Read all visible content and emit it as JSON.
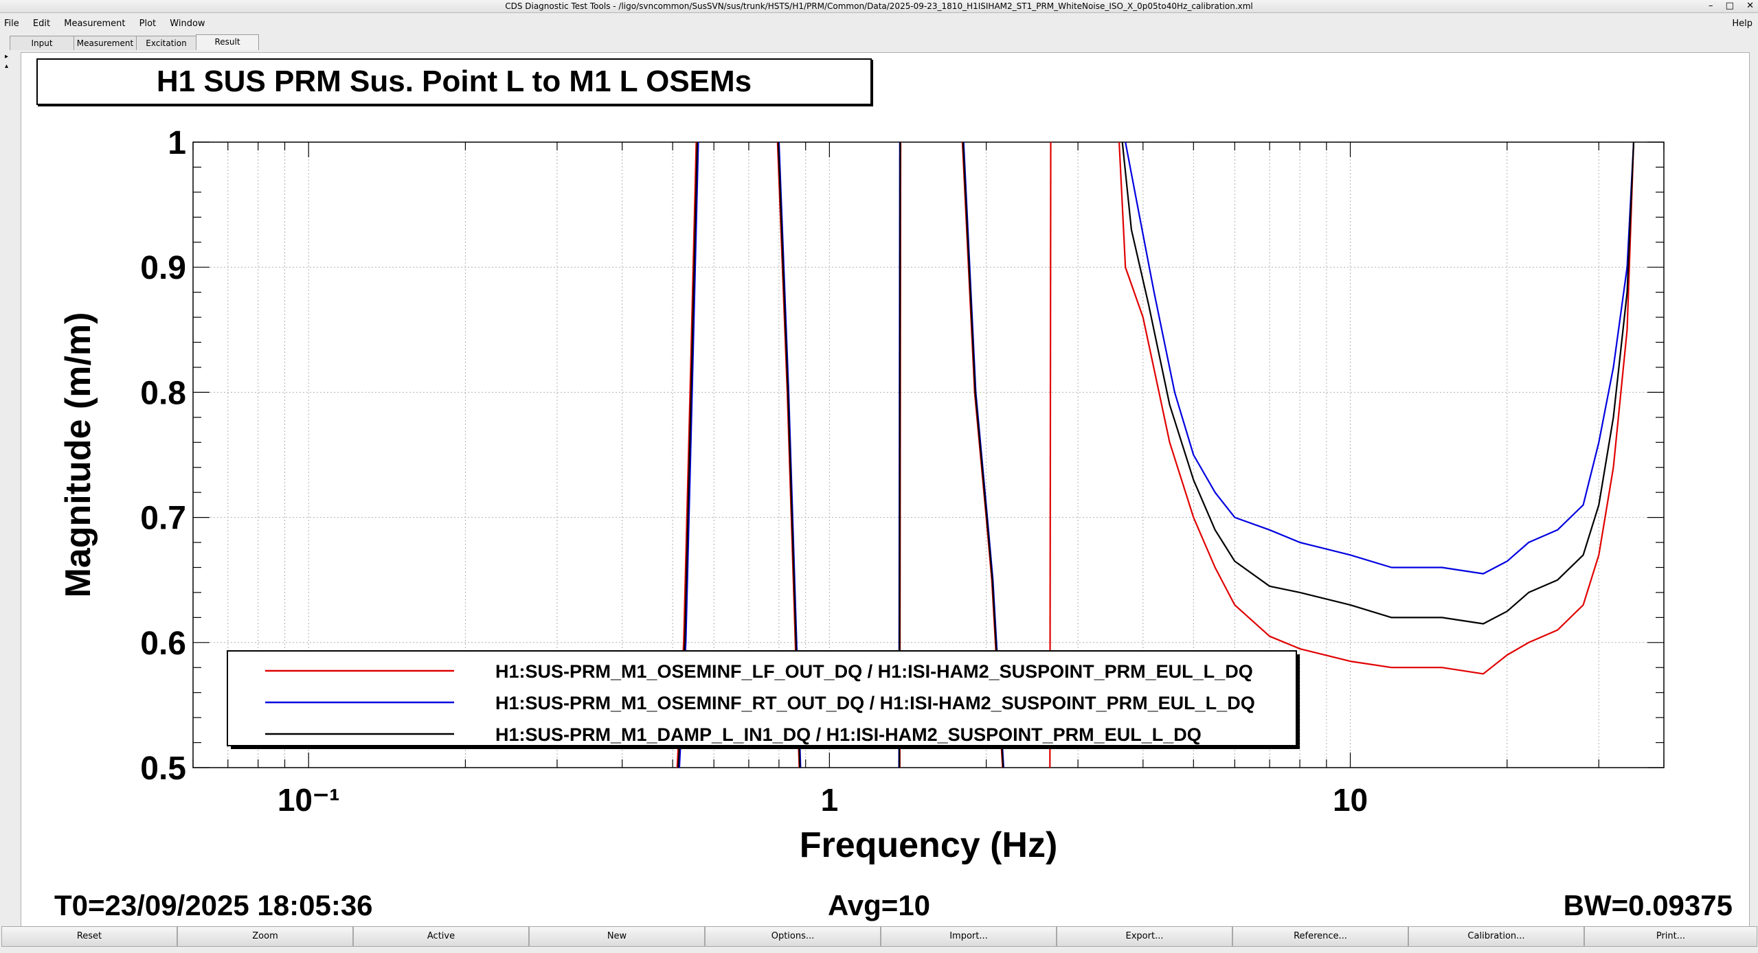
{
  "window": {
    "title": "CDS Diagnostic Test Tools - /ligo/svncommon/SusSVN/sus/trunk/HSTS/H1/PRM/Common/Data/2025-09-23_1810_H1ISIHAM2_ST1_PRM_WhiteNoise_ISO_X_0p05to40Hz_calibration.xml",
    "controls": [
      "–",
      "□",
      "✕"
    ]
  },
  "menu": {
    "items": [
      "File",
      "Edit",
      "Measurement",
      "Plot",
      "Window"
    ],
    "help": "Help"
  },
  "tabs": [
    "Input",
    "Measurement",
    "Excitation",
    "Result"
  ],
  "active_tab": "Result",
  "plot": {
    "title": "H1 SUS PRM Sus. Point L to M1 L OSEMs",
    "footer": {
      "t0": "T0=23/09/2025 18:05:36",
      "avg": "Avg=10",
      "bw": "BW=0.09375"
    }
  },
  "buttons": [
    "Reset",
    "Zoom",
    "Active",
    "New",
    "Options...",
    "Import...",
    "Export...",
    "Reference...",
    "Calibration...",
    "Print..."
  ],
  "chart_data": {
    "type": "line",
    "title": "H1 SUS PRM Sus. Point L to M1 L OSEMs",
    "xlabel": "Frequency (Hz)",
    "ylabel": "Magnitude (m/m)",
    "xscale": "log",
    "xlim": [
      0.06,
      40
    ],
    "ylim": [
      0.5,
      1.0
    ],
    "xticks": [
      "10⁻¹",
      "1",
      "10"
    ],
    "yticks": [
      "0.5",
      "0.6",
      "0.7",
      "0.8",
      "0.9",
      "1"
    ],
    "grid": true,
    "legend_position": "bottom-left",
    "series": [
      {
        "name": "H1:SUS-PRM_M1_OSEMINF_LF_OUT_DQ / H1:ISI-HAM2_SUSPOINT_PRM_EUL_L_DQ",
        "color": "#e00000",
        "segments": [
          [
            [
              0.51,
              0.5
            ],
            [
              0.525,
              0.6
            ],
            [
              0.54,
              0.8
            ],
            [
              0.555,
              1.0
            ]
          ],
          [
            [
              0.795,
              1.0
            ],
            [
              0.83,
              0.8
            ],
            [
              0.86,
              0.6
            ],
            [
              0.875,
              0.5
            ]
          ],
          [
            [
              1.365,
              0.5
            ],
            [
              1.37,
              1.0
            ]
          ],
          [
            [
              1.8,
              1.0
            ],
            [
              1.9,
              0.8
            ],
            [
              2.0,
              0.7
            ],
            [
              2.05,
              0.65
            ],
            [
              2.15,
              0.5
            ]
          ],
          [
            [
              2.65,
              0.5
            ],
            [
              2.66,
              1.0
            ]
          ],
          [
            [
              3.6,
              1.0
            ],
            [
              3.7,
              0.9
            ],
            [
              4.0,
              0.86
            ],
            [
              4.5,
              0.76
            ],
            [
              5,
              0.7
            ],
            [
              5.5,
              0.66
            ],
            [
              6,
              0.63
            ],
            [
              7,
              0.605
            ],
            [
              8,
              0.595
            ],
            [
              10,
              0.585
            ],
            [
              12,
              0.58
            ],
            [
              15,
              0.58
            ],
            [
              18,
              0.575
            ],
            [
              20,
              0.59
            ],
            [
              22,
              0.6
            ],
            [
              25,
              0.61
            ],
            [
              28,
              0.63
            ],
            [
              30,
              0.67
            ],
            [
              32,
              0.74
            ],
            [
              34,
              0.85
            ],
            [
              35,
              1.0
            ]
          ]
        ]
      },
      {
        "name": "H1:SUS-PRM_M1_OSEMINF_RT_OUT_DQ / H1:ISI-HAM2_SUSPOINT_PRM_EUL_L_DQ",
        "color": "#0000e0",
        "segments": [
          [
            [
              0.515,
              0.5
            ],
            [
              0.53,
              0.6
            ],
            [
              0.545,
              0.8
            ],
            [
              0.56,
              1.0
            ]
          ],
          [
            [
              0.8,
              1.0
            ],
            [
              0.835,
              0.8
            ],
            [
              0.865,
              0.6
            ],
            [
              0.88,
              0.5
            ]
          ],
          [
            [
              1.36,
              0.5
            ],
            [
              1.365,
              1.0
            ]
          ],
          [
            [
              1.81,
              1.0
            ],
            [
              1.91,
              0.8
            ],
            [
              2.01,
              0.7
            ],
            [
              2.06,
              0.65
            ],
            [
              2.16,
              0.5
            ]
          ],
          [
            [
              3.7,
              1.0
            ],
            [
              3.9,
              0.95
            ],
            [
              4.2,
              0.88
            ],
            [
              4.6,
              0.8
            ],
            [
              5,
              0.75
            ],
            [
              5.5,
              0.72
            ],
            [
              6,
              0.7
            ],
            [
              7,
              0.69
            ],
            [
              8,
              0.68
            ],
            [
              10,
              0.67
            ],
            [
              12,
              0.66
            ],
            [
              15,
              0.66
            ],
            [
              18,
              0.655
            ],
            [
              20,
              0.665
            ],
            [
              22,
              0.68
            ],
            [
              25,
              0.69
            ],
            [
              28,
              0.71
            ],
            [
              30,
              0.76
            ],
            [
              32,
              0.82
            ],
            [
              34,
              0.9
            ],
            [
              35,
              1.0
            ]
          ]
        ]
      },
      {
        "name": "H1:SUS-PRM_M1_DAMP_L_IN1_DQ / H1:ISI-HAM2_SUSPOINT_PRM_EUL_L_DQ",
        "color": "#000000",
        "segments": [
          [
            [
              0.5125,
              0.5
            ],
            [
              0.5275,
              0.6
            ],
            [
              0.5425,
              0.8
            ],
            [
              0.5575,
              1.0
            ]
          ],
          [
            [
              0.7975,
              1.0
            ],
            [
              0.8325,
              0.8
            ],
            [
              0.8625,
              0.6
            ],
            [
              0.8775,
              0.5
            ]
          ],
          [
            [
              1.3625,
              0.5
            ],
            [
              1.3675,
              1.0
            ]
          ],
          [
            [
              1.805,
              1.0
            ],
            [
              1.905,
              0.8
            ],
            [
              2.005,
              0.7
            ],
            [
              2.055,
              0.65
            ],
            [
              2.155,
              0.5
            ]
          ],
          [
            [
              3.65,
              1.0
            ],
            [
              3.8,
              0.93
            ],
            [
              4.1,
              0.87
            ],
            [
              4.5,
              0.79
            ],
            [
              5,
              0.73
            ],
            [
              5.5,
              0.69
            ],
            [
              6,
              0.665
            ],
            [
              7,
              0.645
            ],
            [
              8,
              0.64
            ],
            [
              10,
              0.63
            ],
            [
              12,
              0.62
            ],
            [
              15,
              0.62
            ],
            [
              18,
              0.615
            ],
            [
              20,
              0.625
            ],
            [
              22,
              0.64
            ],
            [
              25,
              0.65
            ],
            [
              28,
              0.67
            ],
            [
              30,
              0.71
            ],
            [
              32,
              0.78
            ],
            [
              34,
              0.88
            ],
            [
              35,
              1.0
            ]
          ]
        ]
      }
    ]
  }
}
